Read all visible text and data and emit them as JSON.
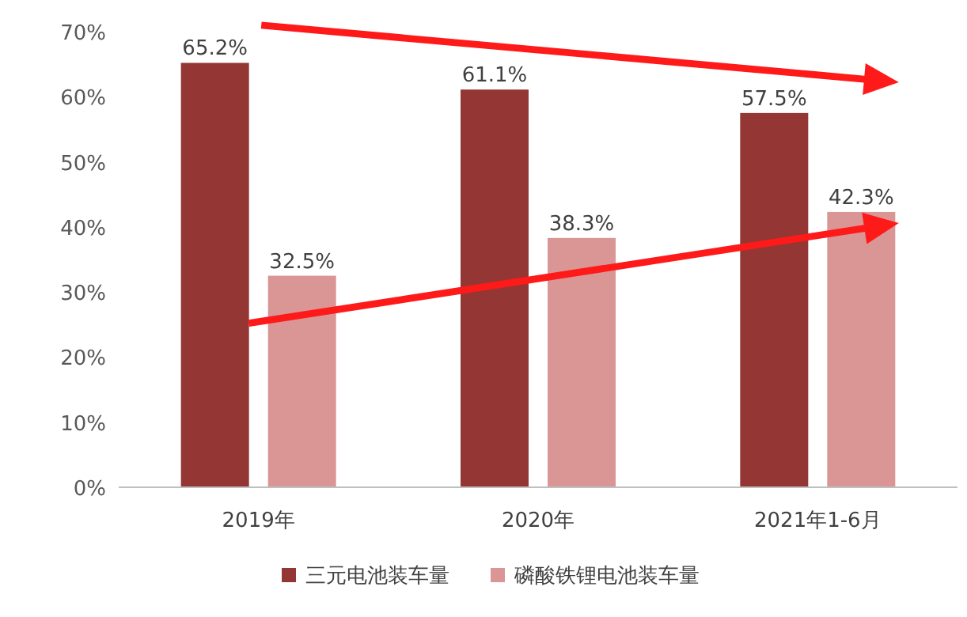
{
  "chart_data": {
    "type": "bar",
    "categories": [
      "2019年",
      "2020年",
      "2021年1-6月"
    ],
    "series": [
      {
        "name": "三元电池装车量",
        "color": "#943634",
        "values": [
          65.2,
          61.1,
          57.5
        ],
        "value_labels": [
          "65.2%",
          "61.1%",
          "57.5%"
        ]
      },
      {
        "name": "磷酸铁锂电池装车量",
        "color": "#d99694",
        "values": [
          32.5,
          38.3,
          42.3
        ],
        "value_labels": [
          "32.5%",
          "38.3%",
          "42.3%"
        ]
      }
    ],
    "ylim": [
      0,
      70
    ],
    "yticks": [
      {
        "value": 0,
        "label": "0%"
      },
      {
        "value": 10,
        "label": "10%"
      },
      {
        "value": 20,
        "label": "20%"
      },
      {
        "value": 30,
        "label": "30%"
      },
      {
        "value": 40,
        "label": "40%"
      },
      {
        "value": 50,
        "label": "50%"
      },
      {
        "value": 60,
        "label": "60%"
      },
      {
        "value": 70,
        "label": "70%"
      }
    ],
    "legend": "bottom"
  }
}
